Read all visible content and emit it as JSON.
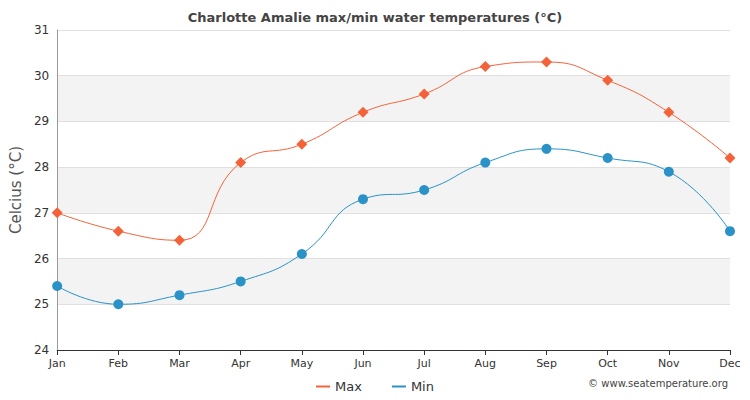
{
  "chart_data": {
    "type": "line",
    "title": "Charlotte Amalie max/min water temperatures (°C)",
    "y_label": "Celcius (°C)",
    "annotations": [
      "© www.seatemperature.org"
    ],
    "categories": [
      "Jan",
      "Feb",
      "Mar",
      "Apr",
      "May",
      "Jun",
      "Jul",
      "Aug",
      "Sep",
      "Oct",
      "Nov",
      "Dec"
    ],
    "series": [
      {
        "name": "Max",
        "color": "#f4623a",
        "marker": "diamond",
        "line_style": "solid",
        "values": [
          27.0,
          26.6,
          26.4,
          28.1,
          28.5,
          29.2,
          29.6,
          30.2,
          30.3,
          29.9,
          29.2,
          28.2
        ]
      },
      {
        "name": "Min",
        "color": "#2a92c6",
        "marker": "circle",
        "line_style": "solid",
        "values": [
          25.4,
          25.0,
          25.2,
          25.5,
          26.1,
          27.3,
          27.5,
          28.1,
          28.4,
          28.2,
          27.9,
          26.6
        ]
      }
    ],
    "ylim": [
      24,
      31
    ],
    "yticks": [
      24,
      25,
      26,
      27,
      28,
      29,
      30,
      31
    ],
    "grid": true,
    "legend": "bottom"
  }
}
